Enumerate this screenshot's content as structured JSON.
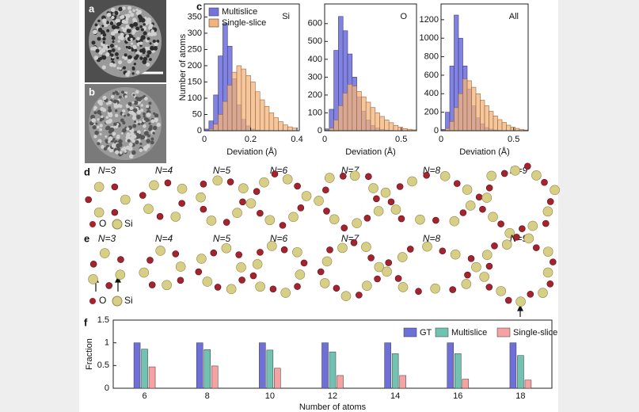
{
  "panel_labels": [
    "a",
    "b",
    "c",
    "d",
    "e",
    "f"
  ],
  "chart_data": [
    {
      "type": "histogram",
      "annotation": "Si",
      "y_label": "Number of atoms",
      "x_label": "Deviation (Å)",
      "xlim": [
        0,
        0.41
      ],
      "xticks": [
        0,
        0.2,
        0.4
      ],
      "ylim": [
        0,
        390
      ],
      "yticks": [
        0,
        50,
        100,
        150,
        200,
        250,
        300,
        350
      ],
      "bins": [
        0,
        0.02,
        0.04,
        0.06,
        0.08,
        0.1,
        0.12,
        0.14,
        0.16,
        0.18,
        0.2,
        0.22,
        0.24,
        0.26,
        0.28,
        0.3,
        0.32,
        0.34,
        0.36,
        0.38,
        0.4
      ],
      "series": [
        {
          "name": "Multislice",
          "color": "#7474dc",
          "values": [
            5,
            30,
            110,
            230,
            330,
            260,
            160,
            80,
            35,
            15,
            5,
            2,
            1,
            0,
            0,
            0,
            0,
            0,
            0,
            0
          ]
        },
        {
          "name": "Single-slice",
          "color": "#f2b47c",
          "values": [
            0,
            5,
            20,
            50,
            90,
            140,
            180,
            200,
            190,
            170,
            150,
            120,
            95,
            75,
            55,
            40,
            28,
            18,
            12,
            8
          ]
        }
      ]
    },
    {
      "type": "histogram",
      "annotation": "O",
      "x_label": "Deviation (Å)",
      "xlim": [
        0,
        0.6
      ],
      "xticks": [
        0,
        0.5
      ],
      "ylim": [
        0,
        710
      ],
      "yticks": [
        0,
        100,
        200,
        300,
        400,
        500,
        600
      ],
      "bins": [
        0,
        0.03,
        0.06,
        0.09,
        0.12,
        0.15,
        0.18,
        0.21,
        0.24,
        0.27,
        0.3,
        0.33,
        0.36,
        0.39,
        0.42,
        0.45,
        0.48,
        0.51,
        0.54,
        0.57,
        0.6
      ],
      "series": [
        {
          "name": "Multislice",
          "color": "#7474dc",
          "values": [
            10,
            120,
            450,
            640,
            560,
            430,
            300,
            190,
            110,
            60,
            30,
            15,
            8,
            4,
            2,
            1,
            0,
            0,
            0,
            0
          ]
        },
        {
          "name": "Single-slice",
          "color": "#f2b47c",
          "values": [
            2,
            15,
            60,
            140,
            210,
            260,
            250,
            220,
            190,
            160,
            130,
            100,
            80,
            60,
            45,
            30,
            20,
            12,
            8,
            5
          ]
        }
      ]
    },
    {
      "type": "histogram",
      "annotation": "All",
      "x_label": "Deviation (Å)",
      "xlim": [
        0,
        0.6
      ],
      "xticks": [
        0,
        0.5
      ],
      "ylim": [
        0,
        1370
      ],
      "yticks": [
        0,
        200,
        400,
        600,
        800,
        1000,
        1200
      ],
      "bins": [
        0,
        0.03,
        0.06,
        0.09,
        0.12,
        0.15,
        0.18,
        0.21,
        0.24,
        0.27,
        0.3,
        0.33,
        0.36,
        0.39,
        0.42,
        0.45,
        0.48,
        0.51,
        0.54,
        0.57,
        0.6
      ],
      "series": [
        {
          "name": "Multislice",
          "color": "#7474dc",
          "values": [
            15,
            200,
            700,
            1250,
            1000,
            700,
            450,
            270,
            140,
            75,
            35,
            18,
            9,
            4,
            2,
            1,
            0,
            0,
            0,
            0
          ]
        },
        {
          "name": "Single-slice",
          "color": "#f2b47c",
          "values": [
            3,
            25,
            100,
            250,
            400,
            560,
            540,
            470,
            400,
            330,
            270,
            210,
            160,
            120,
            90,
            60,
            40,
            25,
            15,
            8
          ]
        }
      ]
    },
    {
      "type": "bar",
      "x_label": "Number of atoms",
      "y_label": "Fraction",
      "categories": [
        "6",
        "8",
        "10",
        "12",
        "14",
        "16",
        "18"
      ],
      "ylim": [
        0,
        1.5
      ],
      "yticks": [
        0,
        0.5,
        1,
        1.5
      ],
      "series": [
        {
          "name": "GT",
          "color": "#6f6fd8",
          "values": [
            1,
            1,
            1,
            1,
            1,
            1,
            1
          ]
        },
        {
          "name": "Multislice",
          "color": "#72c2b2",
          "values": [
            0.86,
            0.85,
            0.84,
            0.8,
            0.76,
            0.76,
            0.72
          ]
        },
        {
          "name": "Single-slice",
          "color": "#f4a2a2",
          "values": [
            0.47,
            0.49,
            0.44,
            0.28,
            0.28,
            0.2,
            0.18
          ]
        }
      ]
    }
  ],
  "structures": {
    "d": {
      "labels": [
        "N=3",
        "N=4",
        "N=5",
        "N=6",
        "N=7",
        "N=8",
        "N=9"
      ],
      "legend": [
        "O",
        "Si"
      ]
    },
    "e": {
      "labels": [
        "N=3",
        "N=4",
        "N=5",
        "N=6",
        "N=7",
        "N=8",
        "N=9"
      ],
      "legend": [
        "O",
        "Si"
      ]
    }
  }
}
